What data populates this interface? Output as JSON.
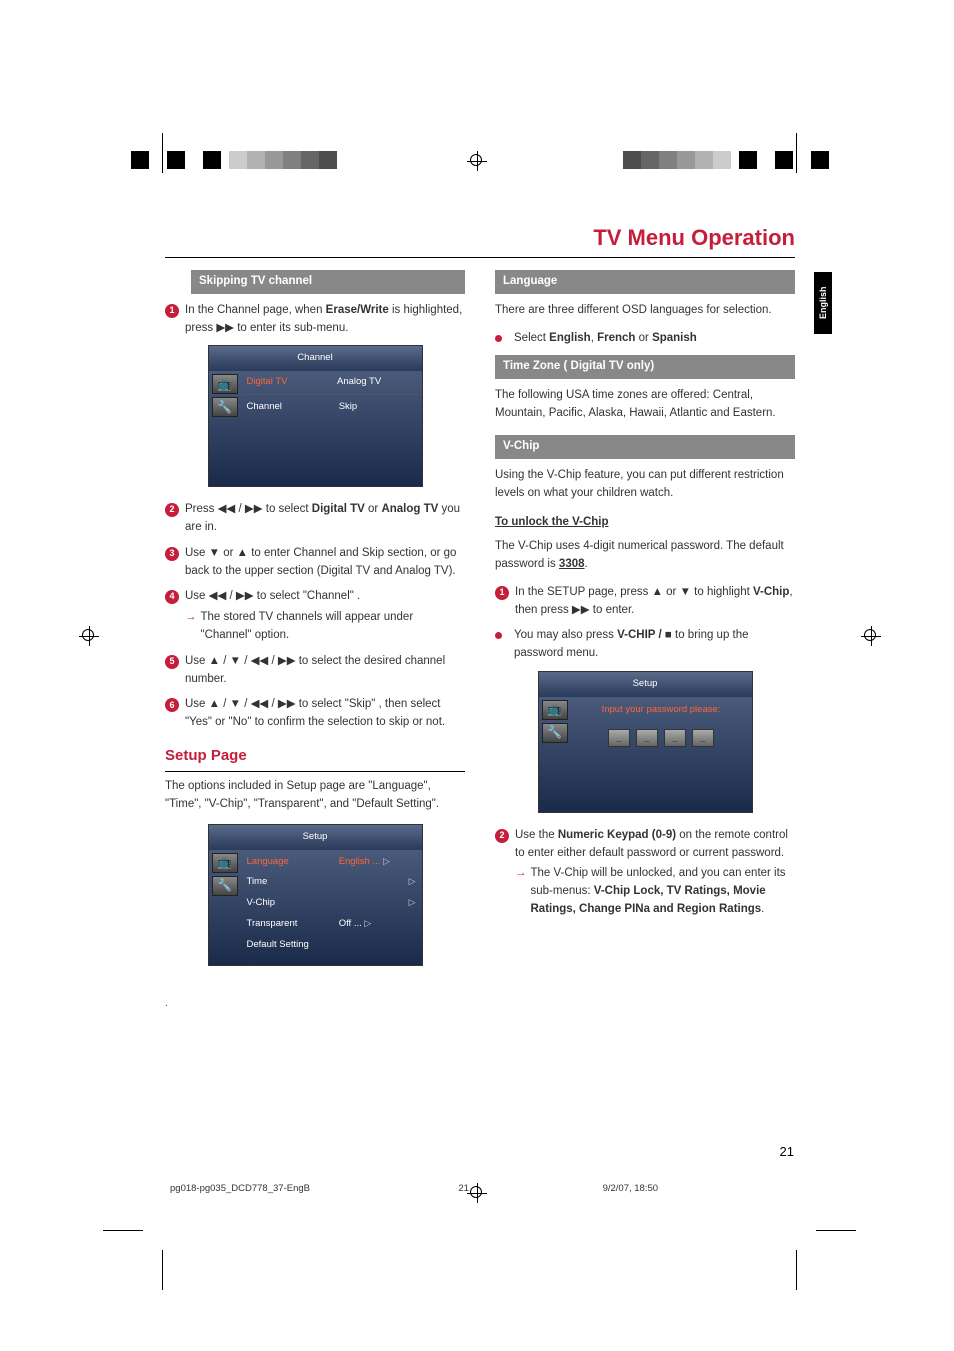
{
  "page_title": "TV Menu Operation",
  "language_tab": "English",
  "page_number": "21",
  "footer": {
    "file": "pg018-pg035_DCD778_37-EngB",
    "page": "21",
    "datetime": "9/2/07, 18:50"
  },
  "crop_grays_left": [
    "#cccccc",
    "#b3b3b3",
    "#999999",
    "#808080",
    "#666666",
    "#4d4d4d"
  ],
  "crop_grays_right": [
    "#4d4d4d",
    "#666666",
    "#808080",
    "#999999",
    "#b3b3b3",
    "#cccccc"
  ],
  "accent_color": "#c41e3a",
  "left": {
    "section1_title": "Skipping TV channel",
    "step1_a": "In the Channel page, when ",
    "step1_b": "Erase/Write",
    "step1_c": " is highlighted, press ▶▶ to enter its sub-menu.",
    "menu1": {
      "header": "Channel",
      "tab1": "Digital TV",
      "tab2": "Analog TV",
      "row1a": "Channel",
      "row1b": "Skip"
    },
    "step2_a": "Press ◀◀ / ▶▶ to select ",
    "step2_b": "Digital TV",
    "step2_c": " or ",
    "step2_d": "Analog TV",
    "step2_e": " you are in.",
    "step3": "Use ▼ or ▲ to enter Channel and Skip section, or go back to the upper section (Digital TV and Analog TV).",
    "step4_a": "Use ◀◀ / ▶▶ to select \"Channel\" .",
    "step4_sub": "The stored TV channels will appear under \"Channel\" option.",
    "step5": "Use ▲ / ▼ / ◀◀ / ▶▶ to select the desired channel number.",
    "step6": "Use ▲ / ▼ / ◀◀ / ▶▶ to select \"Skip\" , then select \"Yes\" or \"No\" to confirm the selection to skip or not.",
    "setup_heading": "Setup Page",
    "setup_intro": "The options included in Setup page are \"Language\", \"Time\", \"V-Chip\", \"Transparent\", and \"Default Setting\".",
    "menu2": {
      "header": "Setup",
      "items": [
        {
          "l": "Language",
          "r": "English  ..."
        },
        {
          "l": "Time",
          "r": ""
        },
        {
          "l": "V-Chip",
          "r": ""
        },
        {
          "l": "Transparent",
          "r": "Off  ..."
        },
        {
          "l": "Default Setting",
          "r": ""
        }
      ]
    }
  },
  "right": {
    "lang_title": "Language",
    "lang_text": "There are three different OSD languages for selection.",
    "lang_sel_a": "Select ",
    "lang_sel_b": "English",
    "lang_sel_c": ", ",
    "lang_sel_d": "French",
    "lang_sel_e": " or ",
    "lang_sel_f": "Spanish",
    "tz_title": "Time Zone ( Digital TV only)",
    "tz_text": "The following USA time zones are offered: Central, Mountain, Pacific, Alaska, Hawaii, Atlantic and Eastern.",
    "vchip_title": "V-Chip",
    "vchip_text": "Using the V-Chip feature, you can put different restriction levels on what your children watch.",
    "unlock_heading": "To unlock the V-Chip",
    "unlock_text_a": "The V-Chip uses 4-digit numerical password. The default password is ",
    "unlock_text_b": "3308",
    "step1_a": "In the SETUP page, press ▲ or ▼ to highlight ",
    "step1_b": "V-Chip",
    "step1_c": ", then press ▶▶ to enter.",
    "bullet_a": "You may also press ",
    "bullet_b": "V-CHIP / ■",
    "bullet_c": " to bring up the password menu.",
    "menu3": {
      "header": "Setup",
      "prompt": "Input your password please:"
    },
    "step2_a": "Use the ",
    "step2_b": "Numeric Keypad (0-9)",
    "step2_c": " on the remote control to enter either default password or current password.",
    "step2_sub_a": "The V-Chip will be unlocked, and you can enter its sub-menus: ",
    "step2_sub_b": "V-Chip Lock, TV Ratings, Movie Ratings, Change PINa and Region Ratings",
    "step2_sub_c": "."
  }
}
